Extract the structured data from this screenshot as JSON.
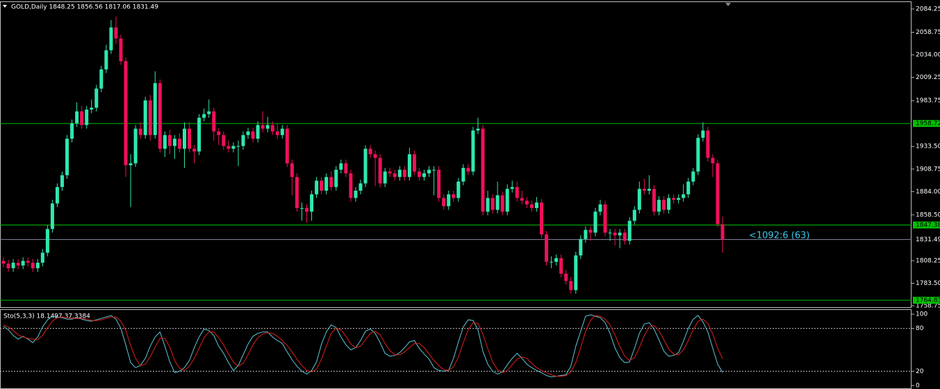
{
  "chart_data": [
    {
      "type": "candlestick",
      "title": "GOLD,Daily  1848.25 1856.56 1817.06 1831.49",
      "annotation": "<1092:6 (63)",
      "up_color": "#2ee8b0",
      "down_color": "#f0105a",
      "ylim": [
        1756.5,
        2092.6
      ],
      "yticks": [
        2084.25,
        2058.75,
        {
          "value": 2034,
          "label": "2034.00"
        },
        2009.25,
        1983.75,
        {
          "value": 1933.5,
          "label": "1933.50"
        },
        1908.75,
        {
          "value": 1884,
          "label": "1884.00"
        },
        {
          "value": 1858.5,
          "label": "1858.50"
        },
        1808.25,
        {
          "value": 1783.5,
          "label": "1783.50"
        },
        1758.75
      ],
      "levels": [
        {
          "value": 1958.72,
          "color": "#00c000"
        },
        {
          "value": 1847.38,
          "color": "#00c000"
        },
        {
          "value": 1764.83,
          "color": "#00c000"
        }
      ],
      "last_price": {
        "value": 1831.49,
        "color": "#8a8aaa"
      },
      "candles": [
        [
          1808,
          1812,
          1801,
          1805
        ],
        [
          1805,
          1809,
          1796,
          1800
        ],
        [
          1800,
          1810,
          1796,
          1806
        ],
        [
          1806,
          1810,
          1799,
          1803
        ],
        [
          1803,
          1812,
          1799,
          1808
        ],
        [
          1808,
          1812,
          1802,
          1806
        ],
        [
          1806,
          1810,
          1796,
          1800
        ],
        [
          1800,
          1810,
          1796,
          1806
        ],
        [
          1806,
          1821,
          1802,
          1817
        ],
        [
          1817,
          1847,
          1813,
          1843
        ],
        [
          1843,
          1875,
          1839,
          1871
        ],
        [
          1871,
          1893,
          1867,
          1889
        ],
        [
          1889,
          1906,
          1885,
          1902
        ],
        [
          1902,
          1946,
          1898,
          1942
        ],
        [
          1942,
          1963,
          1938,
          1959
        ],
        [
          1959,
          1982,
          1955,
          1972
        ],
        [
          1972,
          1978,
          1953,
          1957
        ],
        [
          1957,
          1978,
          1953,
          1974
        ],
        [
          1974,
          1985,
          1970,
          1976
        ],
        [
          1976,
          2001,
          1972,
          1997
        ],
        [
          1997,
          2022,
          1993,
          2018
        ],
        [
          2018,
          2045,
          2014,
          2039
        ],
        [
          2039,
          2072,
          2035,
          2064
        ],
        [
          2064,
          2076,
          2046,
          2052
        ],
        [
          2052,
          2056,
          2023,
          2027
        ],
        [
          2027,
          2031,
          1900,
          1913
        ],
        [
          1913,
          1925,
          1867,
          1915
        ],
        [
          1915,
          1957,
          1911,
          1953
        ],
        [
          1953,
          1960,
          1942,
          1946
        ],
        [
          1946,
          1988,
          1942,
          1984
        ],
        [
          1984,
          1990,
          1940,
          1946
        ],
        [
          1946,
          2016,
          1942,
          2003
        ],
        [
          2003,
          2007,
          1927,
          1931
        ],
        [
          1931,
          1950,
          1922,
          1946
        ],
        [
          1946,
          1952,
          1925,
          1934
        ],
        [
          1934,
          1946,
          1920,
          1942
        ],
        [
          1942,
          1948,
          1927,
          1931
        ],
        [
          1931,
          1960,
          1910,
          1953
        ],
        [
          1953,
          1960,
          1927,
          1931
        ],
        [
          1931,
          1935,
          1915,
          1928
        ],
        [
          1928,
          1969,
          1924,
          1965
        ],
        [
          1965,
          1975,
          1961,
          1969
        ],
        [
          1969,
          1985,
          1965,
          1972
        ],
        [
          1972,
          1976,
          1940,
          1950
        ],
        [
          1950,
          1954,
          1935,
          1946
        ],
        [
          1946,
          1950,
          1930,
          1934
        ],
        [
          1934,
          1940,
          1927,
          1931
        ],
        [
          1931,
          1938,
          1927,
          1934
        ],
        [
          1934,
          1940,
          1912,
          1934
        ],
        [
          1934,
          1950,
          1930,
          1946
        ],
        [
          1946,
          1954,
          1942,
          1950
        ],
        [
          1950,
          1954,
          1938,
          1942
        ],
        [
          1942,
          1961,
          1938,
          1957
        ],
        [
          1957,
          1972,
          1949,
          1953
        ],
        [
          1953,
          1966,
          1949,
          1957
        ],
        [
          1957,
          1961,
          1946,
          1950
        ],
        [
          1950,
          1958,
          1942,
          1946
        ],
        [
          1946,
          1957,
          1942,
          1953
        ],
        [
          1953,
          1957,
          1911,
          1915
        ],
        [
          1915,
          1919,
          1880,
          1900
        ],
        [
          1900,
          1904,
          1862,
          1866
        ],
        [
          1866,
          1872,
          1852,
          1866
        ],
        [
          1866,
          1870,
          1850,
          1862
        ],
        [
          1862,
          1885,
          1852,
          1881
        ],
        [
          1881,
          1900,
          1877,
          1896
        ],
        [
          1896,
          1900,
          1881,
          1885
        ],
        [
          1885,
          1904,
          1881,
          1900
        ],
        [
          1900,
          1906,
          1885,
          1889
        ],
        [
          1889,
          1912,
          1885,
          1908
        ],
        [
          1908,
          1919,
          1904,
          1915
        ],
        [
          1915,
          1919,
          1900,
          1904
        ],
        [
          1904,
          1908,
          1873,
          1877
        ],
        [
          1877,
          1889,
          1873,
          1885
        ],
        [
          1885,
          1897,
          1881,
          1893
        ],
        [
          1893,
          1935,
          1889,
          1931
        ],
        [
          1931,
          1935,
          1921,
          1925
        ],
        [
          1925,
          1929,
          1890,
          1921
        ],
        [
          1921,
          1925,
          1889,
          1893
        ],
        [
          1893,
          1910,
          1889,
          1906
        ],
        [
          1906,
          1910,
          1900,
          1904
        ],
        [
          1904,
          1908,
          1896,
          1900
        ],
        [
          1900,
          1912,
          1896,
          1908
        ],
        [
          1908,
          1912,
          1896,
          1900
        ],
        [
          1900,
          1932,
          1896,
          1925
        ],
        [
          1925,
          1929,
          1902,
          1906
        ],
        [
          1906,
          1910,
          1896,
          1900
        ],
        [
          1900,
          1908,
          1896,
          1904
        ],
        [
          1904,
          1912,
          1900,
          1908
        ],
        [
          1908,
          1912,
          1880,
          1908
        ],
        [
          1908,
          1912,
          1873,
          1877
        ],
        [
          1877,
          1881,
          1864,
          1868
        ],
        [
          1868,
          1885,
          1864,
          1881
        ],
        [
          1881,
          1885,
          1873,
          1877
        ],
        [
          1877,
          1899,
          1873,
          1895
        ],
        [
          1895,
          1914,
          1891,
          1910
        ],
        [
          1910,
          1914,
          1902,
          1906
        ],
        [
          1906,
          1955,
          1902,
          1951
        ],
        [
          1951,
          1965,
          1947,
          1953
        ],
        [
          1953,
          1957,
          1858,
          1862
        ],
        [
          1862,
          1885,
          1858,
          1877
        ],
        [
          1877,
          1881,
          1860,
          1864
        ],
        [
          1864,
          1895,
          1860,
          1880
        ],
        [
          1880,
          1884,
          1858,
          1862
        ],
        [
          1862,
          1892,
          1858,
          1887
        ],
        [
          1887,
          1896,
          1883,
          1889
        ],
        [
          1889,
          1895,
          1873,
          1877
        ],
        [
          1877,
          1885,
          1870,
          1874
        ],
        [
          1874,
          1878,
          1866,
          1870
        ],
        [
          1870,
          1874,
          1862,
          1866
        ],
        [
          1866,
          1878,
          1862,
          1872
        ],
        [
          1872,
          1876,
          1833,
          1837
        ],
        [
          1837,
          1841,
          1803,
          1807
        ],
        [
          1807,
          1813,
          1800,
          1807
        ],
        [
          1807,
          1815,
          1803,
          1811
        ],
        [
          1811,
          1815,
          1790,
          1794
        ],
        [
          1794,
          1798,
          1782,
          1786
        ],
        [
          1786,
          1790,
          1772,
          1776
        ],
        [
          1776,
          1818,
          1772,
          1814
        ],
        [
          1814,
          1836,
          1810,
          1832
        ],
        [
          1832,
          1846,
          1828,
          1842
        ],
        [
          1842,
          1846,
          1830,
          1839
        ],
        [
          1839,
          1866,
          1835,
          1862
        ],
        [
          1862,
          1875,
          1858,
          1870
        ],
        [
          1870,
          1874,
          1835,
          1839
        ],
        [
          1839,
          1843,
          1830,
          1839
        ],
        [
          1839,
          1843,
          1825,
          1836
        ],
        [
          1836,
          1843,
          1822,
          1839
        ],
        [
          1839,
          1843,
          1826,
          1830
        ],
        [
          1830,
          1856,
          1826,
          1852
        ],
        [
          1852,
          1868,
          1848,
          1864
        ],
        [
          1864,
          1895,
          1860,
          1887
        ],
        [
          1887,
          1898,
          1881,
          1885
        ],
        [
          1885,
          1902,
          1881,
          1887
        ],
        [
          1887,
          1891,
          1858,
          1862
        ],
        [
          1862,
          1879,
          1858,
          1875
        ],
        [
          1875,
          1879,
          1860,
          1864
        ],
        [
          1864,
          1881,
          1860,
          1877
        ],
        [
          1877,
          1881,
          1871,
          1875
        ],
        [
          1875,
          1881,
          1871,
          1877
        ],
        [
          1877,
          1892,
          1873,
          1881
        ],
        [
          1881,
          1899,
          1877,
          1895
        ],
        [
          1895,
          1910,
          1891,
          1906
        ],
        [
          1906,
          1947,
          1902,
          1943
        ],
        [
          1943,
          1960,
          1939,
          1951
        ],
        [
          1951,
          1955,
          1917,
          1921
        ],
        [
          1921,
          1925,
          1900,
          1915
        ],
        [
          1915,
          1919,
          1845,
          1848.25
        ],
        [
          1848.25,
          1856.56,
          1817.06,
          1831.49
        ]
      ]
    },
    {
      "type": "line",
      "title": "Sto(5,3,3) 18.1497 37.3384",
      "ylim": [
        -4.9,
        105.8
      ],
      "yticks": [
        0,
        20,
        80,
        100
      ],
      "levels": [
        20,
        80
      ],
      "series": [
        {
          "color": "#5fc8d8",
          "values": [
            83,
            78,
            70,
            65,
            69,
            65,
            60,
            68,
            82,
            92,
            97,
            96,
            95,
            93,
            93,
            95,
            93,
            91,
            90,
            92,
            94,
            96,
            98,
            93,
            80,
            57,
            32,
            25,
            28,
            38,
            55,
            68,
            75,
            55,
            33,
            18,
            20,
            25,
            35,
            53,
            68,
            79,
            77,
            70,
            55,
            45,
            32,
            21,
            28,
            43,
            58,
            69,
            73,
            75,
            75,
            68,
            63,
            59,
            47,
            36,
            27,
            20,
            16,
            21,
            33,
            58,
            75,
            85,
            81,
            68,
            57,
            50,
            53,
            63,
            76,
            79,
            73,
            60,
            45,
            41,
            42,
            46,
            53,
            61,
            63,
            52,
            44,
            37,
            25,
            21,
            20,
            21,
            38,
            61,
            82,
            92,
            91,
            78,
            48,
            30,
            20,
            16,
            19,
            29,
            38,
            45,
            38,
            30,
            25,
            21,
            18,
            14,
            12,
            13,
            14,
            15,
            27,
            55,
            76,
            97,
            99,
            97,
            95,
            88,
            73,
            53,
            39,
            32,
            33,
            52,
            73,
            86,
            88,
            79,
            64,
            48,
            41,
            42,
            46,
            62,
            80,
            93,
            98,
            89,
            75,
            52,
            30,
            18.1497
          ]
        },
        {
          "color": "#e0201c",
          "values": [
            85,
            82,
            77,
            71,
            68,
            66,
            65,
            64,
            70,
            81,
            90,
            95,
            96,
            95,
            94,
            94,
            94,
            93,
            91,
            91,
            92,
            94,
            96,
            96,
            90,
            77,
            56,
            38,
            28,
            30,
            40,
            54,
            66,
            66,
            54,
            35,
            24,
            21,
            27,
            38,
            52,
            67,
            75,
            75,
            67,
            57,
            44,
            33,
            27,
            31,
            43,
            57,
            67,
            72,
            74,
            73,
            69,
            63,
            56,
            47,
            37,
            28,
            21,
            19,
            23,
            37,
            55,
            73,
            80,
            78,
            69,
            58,
            53,
            55,
            64,
            73,
            76,
            71,
            59,
            49,
            43,
            43,
            47,
            53,
            59,
            59,
            53,
            44,
            35,
            28,
            22,
            21,
            26,
            40,
            60,
            78,
            88,
            87,
            72,
            52,
            33,
            22,
            18,
            21,
            29,
            37,
            40,
            38,
            31,
            25,
            21,
            18,
            15,
            13,
            13,
            14,
            19,
            32,
            53,
            76,
            91,
            98,
            97,
            93,
            85,
            71,
            55,
            41,
            35,
            39,
            53,
            70,
            82,
            84,
            77,
            64,
            51,
            44,
            43,
            50,
            63,
            78,
            90,
            93,
            87,
            72,
            52,
            37.3384
          ]
        }
      ]
    }
  ]
}
